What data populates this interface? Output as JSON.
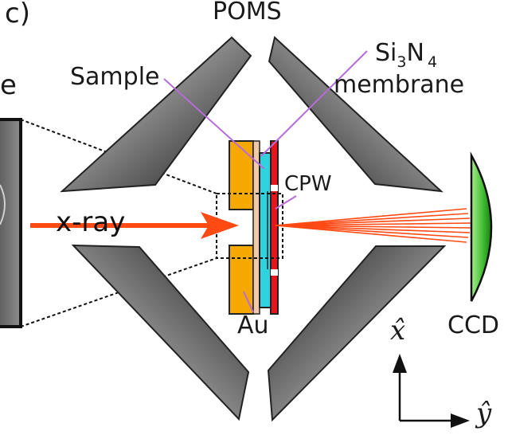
{
  "figure": {
    "panel_label": "c)",
    "left_partial_label": "e"
  },
  "labels": {
    "poms": "POMS",
    "sample": "Sample",
    "si3n4_prefix": "Si",
    "si3n4_sub": "3",
    "si3n4_n": "N",
    "si3n4_sub2": "4",
    "si3n4_line2": "membrane",
    "cpw": "CPW",
    "xray": "x-ray",
    "au": "Au",
    "ccd": "CCD",
    "axis_x": "x̂",
    "axis_y": "ŷ"
  },
  "colors": {
    "gold": "#f5a800",
    "red": "#e8141c",
    "cyan": "#2fd3e0",
    "beige": "#f2c9a8",
    "xray_beam": "#ff4a14",
    "ccd_green": "#3dbb2f",
    "pointer_violet": "#b86bd9"
  }
}
